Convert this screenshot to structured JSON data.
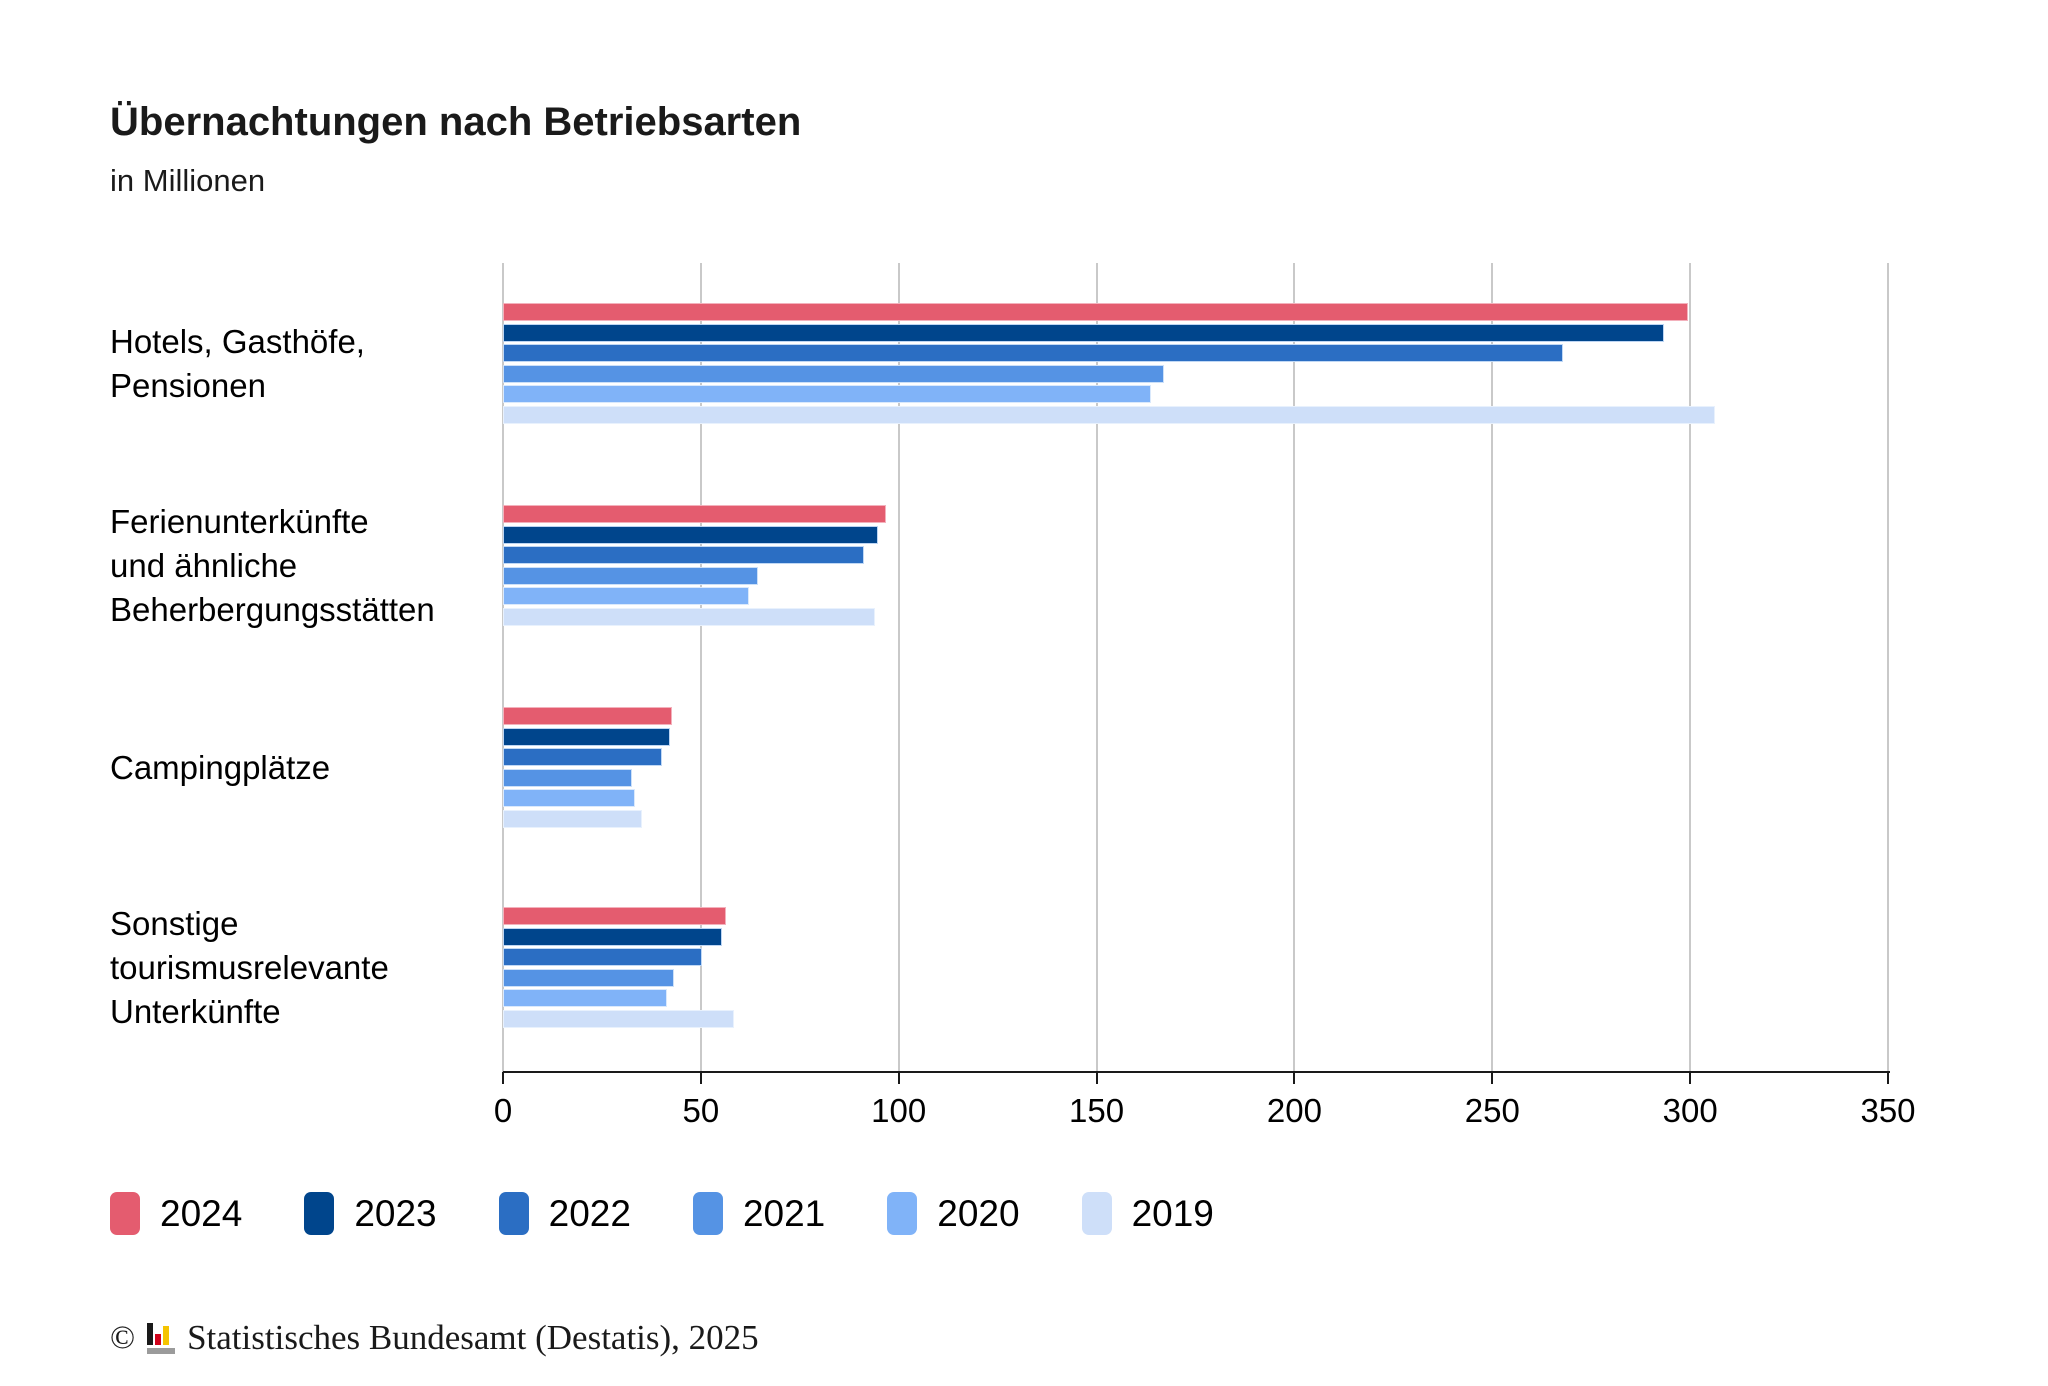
{
  "header": {
    "title": "Übernachtungen nach Betriebsarten",
    "subtitle": "in Millionen"
  },
  "chart_data": {
    "type": "bar",
    "orientation": "horizontal",
    "title": "Übernachtungen nach Betriebsarten",
    "subtitle": "in Millionen",
    "unit": "Millionen",
    "categories": [
      {
        "id": "hotels",
        "label_lines": [
          "Hotels, Gasthöfe,",
          "Pensionen"
        ]
      },
      {
        "id": "ferienunterkuenfte",
        "label_lines": [
          "Ferienunterkünfte",
          "und ähnliche",
          "Beherbergungsstätten"
        ]
      },
      {
        "id": "campingplaetze",
        "label_lines": [
          "Campingplätze"
        ]
      },
      {
        "id": "sonstige",
        "label_lines": [
          "Sonstige",
          "tourismusrelevante",
          "Unterkünfte"
        ]
      }
    ],
    "series": [
      {
        "name": "2024",
        "color": "#e45c6f",
        "edge_color": "#f3b1bc",
        "values": [
          299.5,
          96.7,
          42.8,
          56.3
        ]
      },
      {
        "name": "2023",
        "color": "#00458c",
        "edge_color": "#bdd5f3",
        "values": [
          293.4,
          94.7,
          42.2,
          55.4
        ]
      },
      {
        "name": "2022",
        "color": "#2b6ec3",
        "edge_color": "#c0d8f5",
        "values": [
          267.9,
          91.3,
          40.1,
          50.2
        ]
      },
      {
        "name": "2021",
        "color": "#5593e4",
        "edge_color": "#cce0f8",
        "values": [
          167.1,
          64.4,
          32.7,
          43.3
        ]
      },
      {
        "name": "2020",
        "color": "#80b3f8",
        "edge_color": "#dae9fc",
        "values": [
          163.8,
          62.2,
          33.4,
          41.4
        ]
      },
      {
        "name": "2019",
        "color": "#cedff9",
        "edge_color": "#e8f1fd",
        "values": [
          306.3,
          94.0,
          35.2,
          58.3
        ]
      }
    ],
    "xaxis": {
      "min": 0,
      "max": 350,
      "tick_step": 50,
      "ticks": [
        0,
        50,
        100,
        150,
        200,
        250,
        300,
        350
      ]
    },
    "grid": true,
    "gridline_color": "#c9c9c9",
    "legend_position": "bottom",
    "legend_entries": [
      "2024",
      "2023",
      "2022",
      "2021",
      "2020",
      "2019"
    ]
  },
  "footer": {
    "copyright_symbol": "©",
    "logo": "destatis-logo",
    "text": "Statistisches Bundesamt (Destatis), 2025"
  }
}
